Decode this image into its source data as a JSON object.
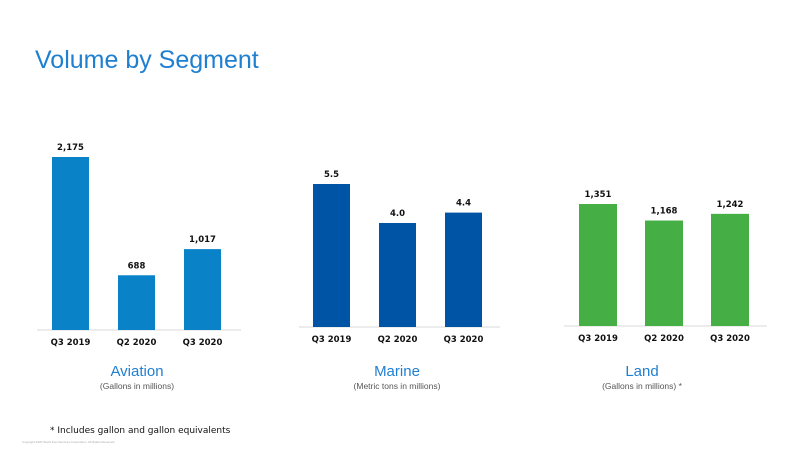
{
  "title": "Volume by Segment",
  "colors": {
    "title": "#1f7fd1",
    "aviation": "#0a82c8",
    "marine": "#0054a6",
    "land": "#45ae45"
  },
  "chart_data": [
    {
      "type": "bar",
      "categories": [
        "Q3 2019",
        "Q2 2020",
        "Q3 2020"
      ],
      "values": [
        2175,
        688,
        1017
      ],
      "value_labels": [
        "2,175",
        "688",
        "1,017"
      ],
      "title": "Aviation",
      "subtitle": "(Gallons in millions)",
      "ylim": [
        0,
        2175
      ]
    },
    {
      "type": "bar",
      "categories": [
        "Q3 2019",
        "Q2 2020",
        "Q3 2020"
      ],
      "values": [
        5.5,
        4.0,
        4.4
      ],
      "value_labels": [
        "5.5",
        "4.0",
        "4.4"
      ],
      "title": "Marine",
      "subtitle": "(Metric tons in millions)",
      "ylim": [
        0,
        5.5
      ]
    },
    {
      "type": "bar",
      "categories": [
        "Q3 2019",
        "Q2 2020",
        "Q3 2020"
      ],
      "values": [
        1351,
        1168,
        1242
      ],
      "value_labels": [
        "1,351",
        "1,168",
        "1,242"
      ],
      "title": "Land",
      "subtitle": "(Gallons in millions) *",
      "ylim": [
        0,
        1351
      ]
    }
  ],
  "footnote": "*  Includes gallon and gallon equivalents",
  "copyright": "Copyright 2020 World Fuel Services Corporation. All Rights Reserved."
}
